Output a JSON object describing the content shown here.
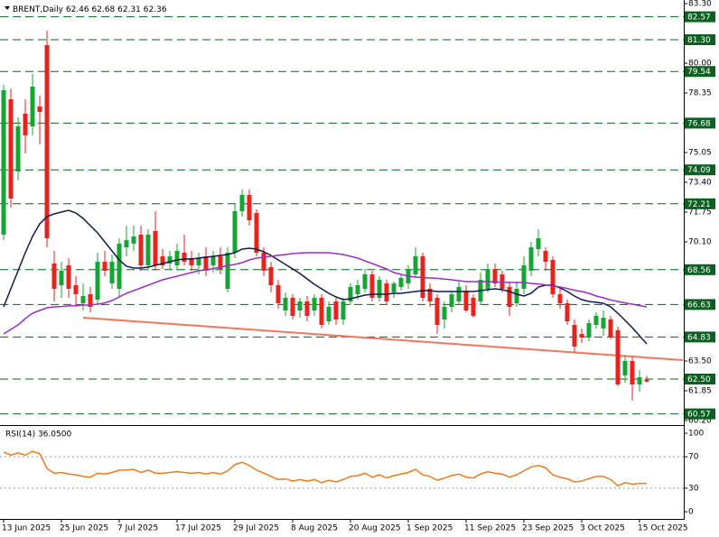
{
  "chart_data": [
    {
      "type": "candlestick",
      "title": "BRENT,Daily",
      "categories": [
        "13 Jun 2025",
        null,
        null,
        null,
        null,
        null,
        null,
        null,
        "25 Jun 2025",
        null,
        null,
        null,
        null,
        null,
        null,
        null,
        "7 Jul 2025",
        null,
        null,
        null,
        null,
        null,
        null,
        null,
        "17 Jul 2025",
        null,
        null,
        null,
        null,
        null,
        null,
        null,
        "29 Jul 2025",
        null,
        null,
        null,
        null,
        null,
        null,
        null,
        "8 Aug 2025",
        null,
        null,
        null,
        null,
        null,
        null,
        null,
        "20 Aug 2025",
        null,
        null,
        null,
        null,
        null,
        null,
        null,
        "1 Sep 2025",
        null,
        null,
        null,
        null,
        null,
        null,
        null,
        "11 Sep 2025",
        null,
        null,
        null,
        null,
        null,
        null,
        null,
        "23 Sep 2025",
        null,
        null,
        null,
        null,
        null,
        null,
        null,
        "3 Oct 2025",
        null,
        null,
        null,
        null,
        null,
        null,
        null,
        "15 Oct 2025",
        null
      ],
      "open": [
        70.5,
        78.0,
        74.0,
        77.2,
        76.5,
        77.6,
        81.0,
        68.9,
        67.7,
        68.8,
        67.7,
        66.7,
        67.2,
        66.9,
        69.0,
        67.8,
        67.5,
        69.8,
        70.0,
        70.5,
        68.8,
        70.7,
        69.3,
        68.9,
        68.8,
        69.5,
        69.2,
        68.8,
        69.3,
        68.8,
        69.3,
        67.5,
        69.5,
        71.8,
        72.7,
        71.7,
        69.5,
        68.7,
        67.7,
        66.3,
        67.0,
        66.3,
        66.8,
        66.3,
        67.0,
        65.7,
        66.8,
        65.8,
        66.8,
        67.2,
        67.5,
        68.3,
        67.0,
        67.8,
        67.3,
        67.6,
        67.8,
        68.3,
        69.3,
        67.5,
        67.0,
        65.8,
        66.5,
        66.8,
        67.4,
        67.0,
        66.8,
        67.5,
        68.6,
        68.3,
        67.6,
        66.7,
        67.5,
        68.5,
        69.7,
        69.6,
        69.1,
        67.2,
        66.7,
        65.5,
        65.0,
        64.8,
        65.5,
        65.3,
        65.8,
        65.2,
        62.7,
        63.5,
        62.2,
        62.46
      ],
      "high": [
        78.8,
        78.6,
        77.0,
        78.0,
        79.4,
        78.2,
        81.8,
        69.6,
        69.0,
        69.2,
        68.2,
        67.8,
        67.6,
        69.5,
        69.6,
        69.4,
        70.3,
        71.0,
        71.0,
        71.0,
        70.8,
        71.8,
        69.7,
        69.6,
        70.0,
        70.5,
        69.6,
        69.5,
        69.8,
        69.6,
        69.8,
        69.8,
        72.2,
        73.0,
        73.0,
        71.9,
        69.8,
        69.0,
        68.0,
        67.3,
        67.2,
        67.0,
        67.1,
        67.2,
        67.2,
        66.8,
        67.0,
        67.0,
        67.8,
        68.0,
        68.6,
        68.5,
        68.2,
        68.0,
        67.9,
        68.3,
        68.8,
        69.8,
        69.5,
        67.8,
        67.2,
        66.8,
        67.4,
        67.9,
        67.7,
        67.2,
        68.4,
        68.9,
        68.9,
        68.5,
        67.9,
        67.9,
        69.3,
        70.1,
        70.8,
        69.8,
        69.3,
        67.5,
        66.9,
        65.8,
        65.3,
        65.8,
        66.2,
        66.3,
        66.0,
        65.4,
        63.8,
        63.7,
        63.0,
        62.68
      ],
      "low": [
        70.2,
        72.0,
        73.5,
        75.0,
        76.0,
        75.5,
        69.8,
        66.8,
        67.0,
        67.0,
        66.5,
        66.3,
        66.2,
        66.6,
        68.2,
        67.5,
        67.0,
        69.3,
        69.6,
        68.5,
        68.5,
        68.5,
        68.6,
        68.6,
        68.5,
        68.8,
        68.5,
        68.3,
        68.2,
        68.4,
        68.3,
        67.3,
        69.2,
        71.5,
        71.0,
        69.3,
        68.2,
        67.3,
        66.4,
        66.0,
        65.8,
        65.9,
        65.7,
        66.0,
        65.3,
        65.5,
        65.5,
        65.5,
        66.6,
        66.9,
        67.3,
        66.8,
        66.8,
        66.6,
        67.0,
        67.4,
        67.5,
        68.1,
        66.8,
        66.5,
        65.0,
        65.3,
        66.2,
        66.6,
        66.2,
        65.9,
        66.6,
        67.3,
        67.6,
        67.3,
        66.0,
        66.5,
        67.2,
        68.2,
        69.3,
        68.5,
        67.0,
        66.4,
        65.5,
        64.0,
        64.5,
        64.6,
        65.3,
        64.9,
        64.7,
        62.1,
        62.3,
        61.3,
        61.8,
        62.31
      ],
      "close": [
        78.5,
        72.5,
        76.5,
        76.0,
        78.7,
        77.3,
        70.3,
        67.5,
        68.5,
        67.5,
        67.2,
        67.1,
        66.5,
        69.0,
        68.5,
        69.0,
        70.0,
        70.2,
        70.4,
        68.8,
        70.5,
        68.8,
        68.8,
        69.3,
        69.6,
        69.0,
        68.8,
        69.2,
        68.5,
        69.3,
        68.6,
        69.5,
        71.8,
        72.7,
        71.3,
        69.5,
        68.5,
        67.7,
        66.7,
        67.0,
        66.0,
        66.8,
        66.0,
        67.0,
        65.5,
        66.5,
        65.8,
        66.8,
        67.6,
        67.7,
        68.3,
        67.0,
        68.0,
        66.8,
        67.8,
        68.1,
        68.6,
        69.3,
        67.0,
        66.8,
        65.5,
        66.5,
        67.2,
        67.6,
        66.3,
        66.0,
        68.0,
        68.6,
        67.8,
        67.5,
        66.5,
        67.5,
        68.8,
        69.8,
        70.3,
        69.0,
        67.2,
        66.7,
        65.7,
        64.3,
        64.8,
        65.6,
        66.0,
        65.9,
        64.8,
        62.2,
        63.5,
        62.2,
        62.6,
        62.36
      ],
      "up_color": "#16a535",
      "down_color": "#e8231e",
      "ylim": [
        60.2,
        83.3
      ],
      "yticks": [
        {
          "value": 60.2,
          "label": "60.20"
        },
        61.85,
        {
          "value": 63.5,
          "label": "63.50"
        },
        {
          "value": 70.1,
          "label": "70.10"
        },
        71.75,
        {
          "value": 73.4,
          "label": "73.40"
        },
        75.05,
        78.35,
        {
          "value": 80.0,
          "label": "80.00"
        },
        {
          "value": 83.3,
          "label": "83.30"
        }
      ],
      "levels": [
        82.57,
        {
          "value": 81.3,
          "label": "81.30"
        },
        79.54,
        76.68,
        74.09,
        72.21,
        68.56,
        66.63,
        64.83,
        {
          "value": 62.5,
          "label": "62.50"
        },
        60.57
      ],
      "level_color": "#0e5f22",
      "moving_averages": [
        {
          "color": "#121a4a",
          "values": [
            66.5,
            67.5,
            68.5,
            69.5,
            70.4,
            71.1,
            71.5,
            71.65,
            71.75,
            71.85,
            71.7,
            71.4,
            71.0,
            70.6,
            70.1,
            69.6,
            69.1,
            68.75,
            68.65,
            68.65,
            68.7,
            68.8,
            68.9,
            69.0,
            69.1,
            69.15,
            69.15,
            69.2,
            69.25,
            69.3,
            69.35,
            69.4,
            69.5,
            69.7,
            69.75,
            69.7,
            69.55,
            69.35,
            69.1,
            68.85,
            68.6,
            68.35,
            68.05,
            67.75,
            67.5,
            67.25,
            67.05,
            66.9,
            66.95,
            67.05,
            67.15,
            67.2,
            67.2,
            67.2,
            67.25,
            67.25,
            67.3,
            67.35,
            67.4,
            67.4,
            67.35,
            67.35,
            67.35,
            67.35,
            67.35,
            67.35,
            67.4,
            67.45,
            67.5,
            67.45,
            67.35,
            67.2,
            67.1,
            67.25,
            67.6,
            67.7,
            67.7,
            67.55,
            67.35,
            67.1,
            66.9,
            66.8,
            66.75,
            66.7,
            66.5,
            66.15,
            65.75,
            65.35,
            64.9,
            64.45
          ]
        },
        {
          "color": "#9b2fc9",
          "values": [
            65.0,
            65.25,
            65.5,
            65.85,
            66.15,
            66.3,
            66.45,
            66.5,
            66.52,
            66.55,
            66.57,
            66.6,
            66.6,
            66.65,
            66.72,
            66.85,
            67.05,
            67.25,
            67.4,
            67.55,
            67.7,
            67.85,
            68.0,
            68.1,
            68.2,
            68.3,
            68.4,
            68.5,
            68.55,
            68.62,
            68.7,
            68.78,
            68.85,
            68.95,
            69.1,
            69.2,
            69.25,
            69.3,
            69.35,
            69.4,
            69.45,
            69.48,
            69.5,
            69.5,
            69.5,
            69.5,
            69.45,
            69.4,
            69.3,
            69.2,
            69.05,
            68.9,
            68.75,
            68.6,
            68.4,
            68.3,
            68.2,
            68.15,
            68.12,
            68.1,
            68.08,
            68.04,
            68.0,
            67.95,
            67.9,
            67.9,
            67.9,
            67.9,
            67.88,
            67.86,
            67.85,
            67.85,
            67.85,
            67.8,
            67.77,
            67.72,
            67.66,
            67.6,
            67.52,
            67.42,
            67.35,
            67.25,
            67.1,
            67.0,
            66.88,
            66.8,
            66.72,
            66.65,
            66.57,
            66.5
          ]
        }
      ],
      "trendline": {
        "color": "#f4765e",
        "x": [
          11,
          94
        ],
        "values": [
          65.9,
          63.55
        ]
      }
    },
    {
      "type": "line",
      "title": "RSI(14) 36.0500",
      "values": [
        76,
        72,
        75,
        72,
        77,
        74,
        55,
        49,
        50,
        48,
        47,
        45,
        44,
        49,
        48,
        50,
        53,
        53,
        54,
        50,
        53,
        49,
        49,
        50,
        51,
        50,
        49,
        50,
        48,
        50,
        48,
        52,
        60,
        63,
        59,
        53,
        49,
        45,
        41,
        42,
        39,
        41,
        39,
        41,
        37,
        40,
        38,
        41,
        45,
        46,
        49,
        44,
        47,
        43,
        46,
        48,
        50,
        54,
        47,
        45,
        40,
        43,
        46,
        48,
        44,
        43,
        48,
        51,
        49,
        48,
        44,
        47,
        52,
        57,
        59,
        56,
        47,
        44,
        42,
        38,
        39,
        42,
        45,
        45,
        41,
        33,
        37,
        35,
        36,
        36.05
      ],
      "color": "#f07a1a",
      "ylim": [
        0,
        100
      ],
      "yticks": [
        0,
        30,
        70,
        100
      ],
      "grid": true
    }
  ]
}
